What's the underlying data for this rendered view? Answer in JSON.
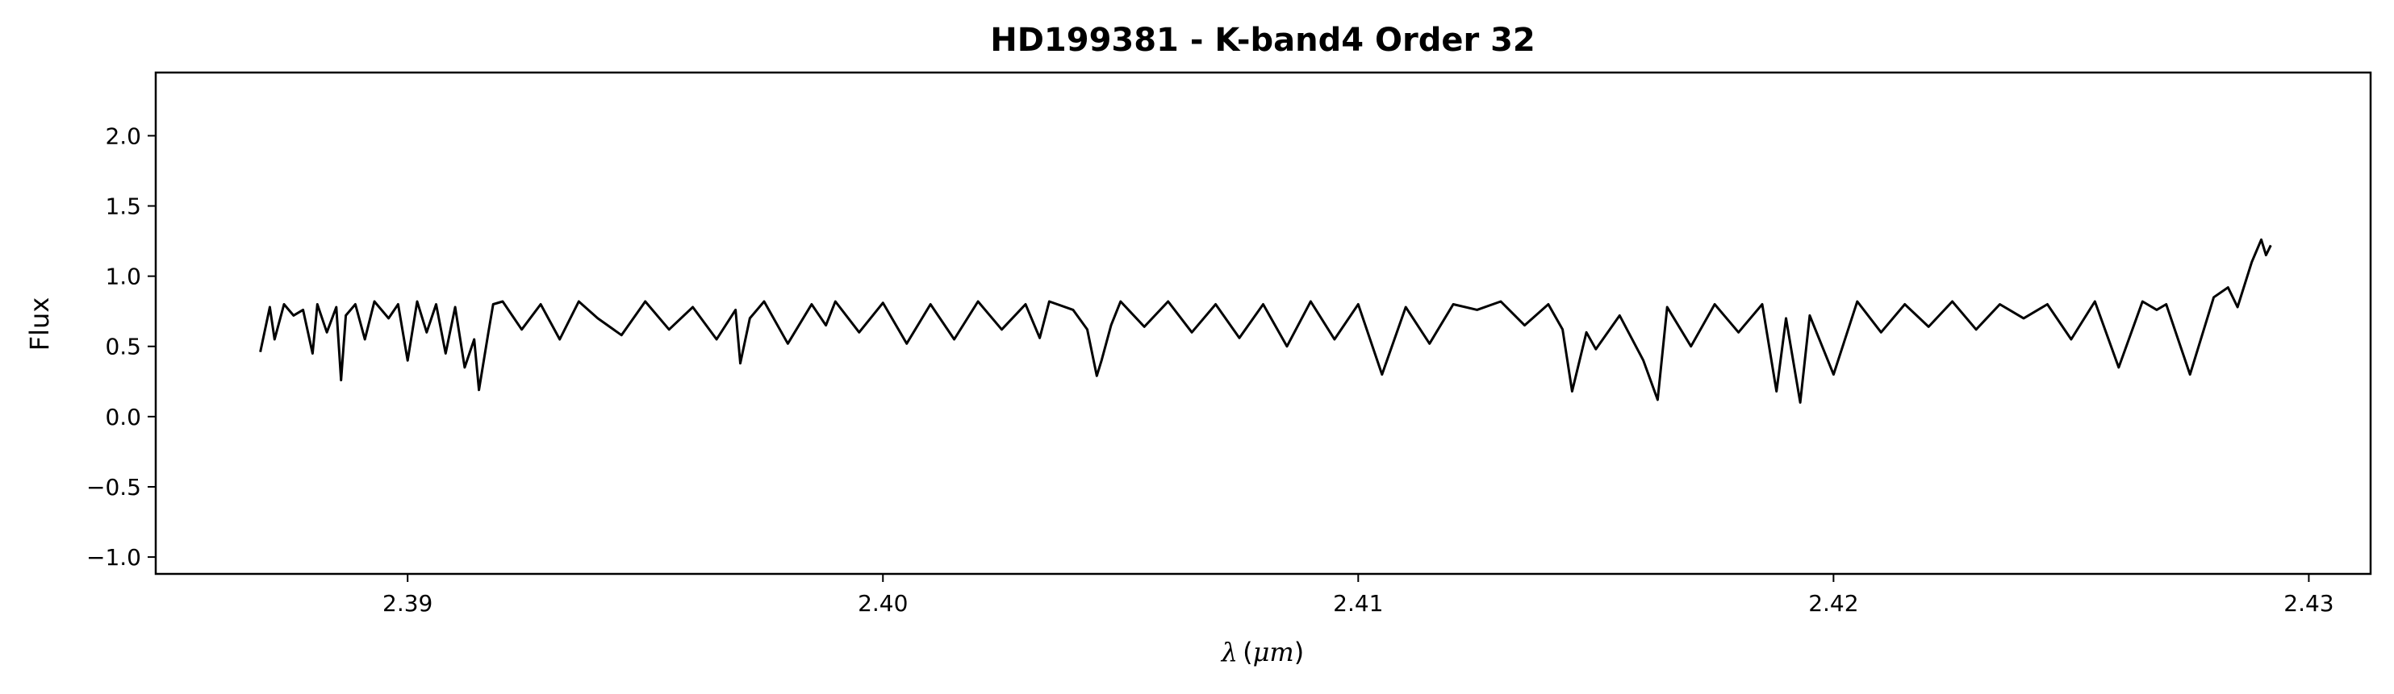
{
  "chart_data": {
    "type": "line",
    "title": "HD199381 - K-band4 Order 32",
    "xlabel": "λ (μm)",
    "xlabel_parts": {
      "symbol": "λ",
      "open": "(",
      "unit": "μm",
      "close": ")"
    },
    "ylabel": "Flux",
    "xlim": [
      2.3847,
      2.4313
    ],
    "ylim": [
      -1.12,
      2.45
    ],
    "xticks": [
      2.39,
      2.4,
      2.41,
      2.42,
      2.43
    ],
    "xtick_labels": [
      "2.39",
      "2.40",
      "2.41",
      "2.42",
      "2.43"
    ],
    "yticks": [
      -1.0,
      -0.5,
      0.0,
      0.5,
      1.0,
      1.5,
      2.0
    ],
    "ytick_labels": [
      "−1.0",
      "−0.5",
      "0.0",
      "0.5",
      "1.0",
      "1.5",
      "2.0"
    ],
    "grid": false,
    "line_color": "#000000",
    "series": [
      {
        "x": [
          2.3869,
          2.3871,
          2.3872,
          2.3874,
          2.3876,
          2.3878,
          2.388,
          2.3881,
          2.3883,
          2.3885,
          2.3886,
          2.3887,
          2.3889,
          2.3891,
          2.3893,
          2.3896,
          2.3898,
          2.39,
          2.3902,
          2.3904,
          2.3906,
          2.3908,
          2.391,
          2.3912,
          2.3914,
          2.3915,
          2.3917,
          2.3918,
          2.392,
          2.3924,
          2.3928,
          2.3932,
          2.3936,
          2.394,
          2.3945,
          2.395,
          2.3955,
          2.396,
          2.3965,
          2.3969,
          2.397,
          2.3972,
          2.3975,
          2.398,
          2.3985,
          2.3988,
          2.399,
          2.3995,
          2.4,
          2.4005,
          2.401,
          2.4015,
          2.402,
          2.4025,
          2.403,
          2.4033,
          2.4035,
          2.404,
          2.4043,
          2.4045,
          2.4046,
          2.4048,
          2.405,
          2.4055,
          2.406,
          2.4065,
          2.407,
          2.4075,
          2.408,
          2.4085,
          2.409,
          2.4095,
          2.41,
          2.4105,
          2.411,
          2.4115,
          2.412,
          2.4125,
          2.413,
          2.4135,
          2.414,
          2.4143,
          2.4145,
          2.4148,
          2.415,
          2.4155,
          2.416,
          2.4163,
          2.4165,
          2.417,
          2.4175,
          2.418,
          2.4185,
          2.4188,
          2.419,
          2.4193,
          2.4195,
          2.42,
          2.4205,
          2.421,
          2.4215,
          2.422,
          2.4225,
          2.423,
          2.4235,
          2.424,
          2.4245,
          2.425,
          2.4255,
          2.426,
          2.4265,
          2.4268,
          2.427,
          2.4275,
          2.428,
          2.4283,
          2.4285,
          2.4288,
          2.429,
          2.4291,
          2.4292
        ],
        "y": [
          0.46,
          0.78,
          0.55,
          0.8,
          0.72,
          0.76,
          0.45,
          0.8,
          0.6,
          0.78,
          0.26,
          0.72,
          0.8,
          0.55,
          0.82,
          0.7,
          0.8,
          0.4,
          0.82,
          0.6,
          0.8,
          0.45,
          0.78,
          0.35,
          0.55,
          0.19,
          0.6,
          0.8,
          0.82,
          0.62,
          0.8,
          0.55,
          0.82,
          0.7,
          0.58,
          0.82,
          0.62,
          0.78,
          0.55,
          0.76,
          0.38,
          0.7,
          0.82,
          0.52,
          0.8,
          0.65,
          0.82,
          0.6,
          0.81,
          0.52,
          0.8,
          0.55,
          0.82,
          0.62,
          0.8,
          0.56,
          0.82,
          0.76,
          0.62,
          0.29,
          0.4,
          0.65,
          0.82,
          0.64,
          0.82,
          0.6,
          0.8,
          0.56,
          0.8,
          0.5,
          0.82,
          0.55,
          0.8,
          0.3,
          0.78,
          0.52,
          0.8,
          0.76,
          0.82,
          0.65,
          0.8,
          0.62,
          0.18,
          0.6,
          0.48,
          0.72,
          0.4,
          0.12,
          0.78,
          0.5,
          0.8,
          0.6,
          0.8,
          0.18,
          0.7,
          0.1,
          0.72,
          0.3,
          0.82,
          0.6,
          0.8,
          0.64,
          0.82,
          0.62,
          0.8,
          0.7,
          0.8,
          0.55,
          0.82,
          0.35,
          0.82,
          0.76,
          0.8,
          0.3,
          0.85,
          0.92,
          0.78,
          1.1,
          1.26,
          1.15,
          1.22
        ]
      }
    ]
  }
}
